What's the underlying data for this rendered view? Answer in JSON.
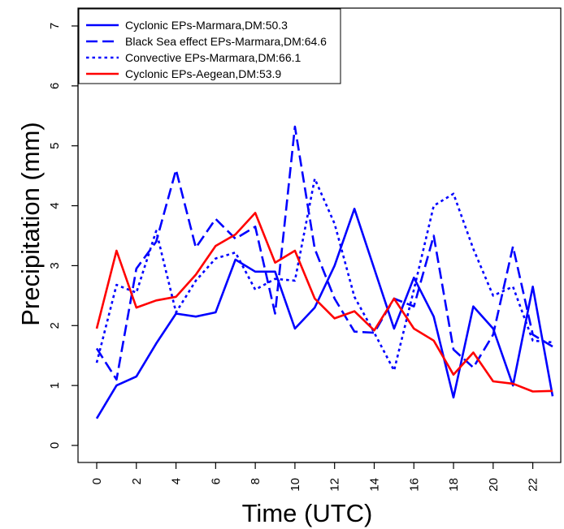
{
  "chart_data": {
    "type": "line",
    "title": "",
    "xlabel": "Time (UTC)",
    "ylabel": "Precipitation (mm)",
    "xlim": [
      0,
      23
    ],
    "ylim": [
      0,
      7
    ],
    "x_ticks": [
      0,
      2,
      4,
      6,
      8,
      10,
      12,
      14,
      16,
      18,
      20,
      22
    ],
    "y_ticks": [
      0,
      1,
      2,
      3,
      4,
      5,
      6,
      7
    ],
    "x": [
      0,
      1,
      2,
      3,
      4,
      5,
      6,
      7,
      8,
      9,
      10,
      11,
      12,
      13,
      14,
      15,
      16,
      17,
      18,
      19,
      20,
      21,
      22,
      23
    ],
    "grid": false,
    "legend_position": "top-left",
    "series": [
      {
        "name": "Cyclonic EPs-Marmara,DM:50.3",
        "color": "#0000ff",
        "style": "solid",
        "values": [
          0.45,
          1.0,
          1.15,
          1.7,
          2.2,
          2.15,
          2.22,
          3.1,
          2.9,
          2.9,
          1.95,
          2.3,
          3.0,
          3.95,
          2.95,
          1.95,
          2.8,
          2.15,
          0.8,
          2.32,
          1.95,
          1.0,
          2.65,
          0.82
        ]
      },
      {
        "name": "Black Sea effect EPs-Marmara,DM:64.6",
        "color": "#0000ff",
        "style": "dashed",
        "values": [
          1.62,
          1.1,
          2.95,
          3.4,
          4.6,
          3.3,
          3.78,
          3.45,
          3.65,
          2.2,
          5.32,
          3.28,
          2.45,
          1.9,
          1.88,
          2.45,
          2.32,
          3.5,
          1.6,
          1.3,
          1.85,
          3.32,
          1.85,
          1.65
        ]
      },
      {
        "name": "Convective EPs-Marmara,DM:66.1",
        "color": "#0000ff",
        "style": "dotted",
        "values": [
          1.38,
          2.68,
          2.55,
          3.58,
          2.22,
          2.75,
          3.12,
          3.22,
          2.6,
          2.78,
          2.75,
          4.45,
          3.7,
          2.48,
          1.88,
          1.25,
          2.6,
          4.0,
          4.2,
          3.28,
          2.5,
          2.65,
          1.75,
          1.72
        ]
      },
      {
        "name": "Cyclonic EPs-Aegean,DM:53.9",
        "color": "#ff0000",
        "style": "solid",
        "values": [
          1.95,
          3.25,
          2.3,
          2.42,
          2.48,
          2.85,
          3.33,
          3.52,
          3.88,
          3.05,
          3.25,
          2.45,
          2.12,
          2.24,
          1.92,
          2.45,
          1.95,
          1.75,
          1.18,
          1.55,
          1.07,
          1.03,
          0.9,
          0.91
        ]
      }
    ]
  }
}
